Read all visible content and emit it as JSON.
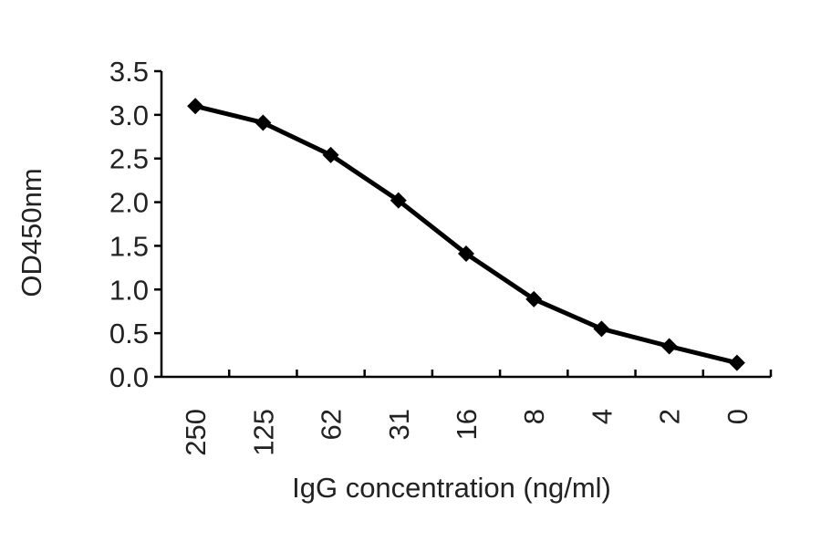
{
  "chart_data": {
    "type": "line",
    "title": "",
    "xlabel": "IgG concentration (ng/ml)",
    "ylabel": "OD450nm",
    "categories": [
      "250",
      "125",
      "62",
      "31",
      "16",
      "8",
      "4",
      "2",
      "0"
    ],
    "series": [
      {
        "values": [
          3.1,
          2.91,
          2.54,
          2.02,
          1.41,
          0.89,
          0.55,
          0.35,
          0.16
        ]
      }
    ],
    "ylim": [
      0,
      3.5
    ],
    "yticks": [
      "0.0",
      "0.5",
      "1.0",
      "1.5",
      "2.0",
      "2.5",
      "3.0",
      "3.5"
    ],
    "grid": false,
    "legend": "none",
    "colors": {
      "series": "#000000",
      "axis": "#000000",
      "text": "#222222"
    },
    "marker": "diamond"
  }
}
